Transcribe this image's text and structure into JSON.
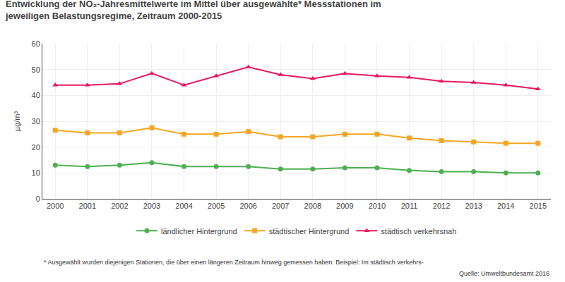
{
  "chart_data": {
    "type": "line",
    "title": "Entwicklung der NO₂-Jahresmittelwerte im Mittel über ausgewählte* Messstationen im\njeweiligen Belastungsregime, Zeitraum 2000-2015",
    "y_label": "µg/m³",
    "x": [
      2000,
      2001,
      2002,
      2003,
      2004,
      2005,
      2006,
      2007,
      2008,
      2009,
      2010,
      2011,
      2012,
      2013,
      2014,
      2015
    ],
    "series": [
      {
        "name": "ländlicher Hintergrund",
        "color": "#4caf50",
        "marker": "circle",
        "values": [
          13,
          12.5,
          13,
          14,
          12.5,
          12.5,
          12.5,
          11.5,
          11.5,
          12,
          12,
          11,
          10.5,
          10.5,
          10,
          10
        ]
      },
      {
        "name": "städtischer Hintergrund",
        "color": "#f5a623",
        "marker": "square",
        "values": [
          26.5,
          25.5,
          25.5,
          27.5,
          25,
          25,
          26,
          24,
          24,
          25,
          25,
          23.5,
          22.5,
          22,
          21.5,
          21.5
        ]
      },
      {
        "name": "städtisch verkehrsnah",
        "color": "#e8185e",
        "marker": "triangle-up",
        "values": [
          44,
          44,
          44.5,
          48.5,
          44,
          47.5,
          51,
          48,
          46.5,
          48.5,
          47.5,
          47,
          45.5,
          45,
          44,
          42.5
        ]
      }
    ],
    "xlim": [
      1999.6,
      2015.4
    ],
    "xticks": [
      2000,
      2001,
      2002,
      2003,
      2004,
      2005,
      2006,
      2007,
      2008,
      2009,
      2010,
      2011,
      2012,
      2013,
      2014,
      2015
    ],
    "ylim": [
      0,
      60
    ],
    "yticks": [
      0,
      10,
      20,
      30,
      40,
      50,
      60
    ],
    "grid": true,
    "legend": "bottom",
    "annotations": [
      "* Ausgewählt wurden diejenigen Stationen, die über einen längeren Zeitraum hinweg gemessen haben. Beispiel: Im städtisch verkehrs-",
      "Quelle: Umweltbundesamt 2016"
    ]
  }
}
